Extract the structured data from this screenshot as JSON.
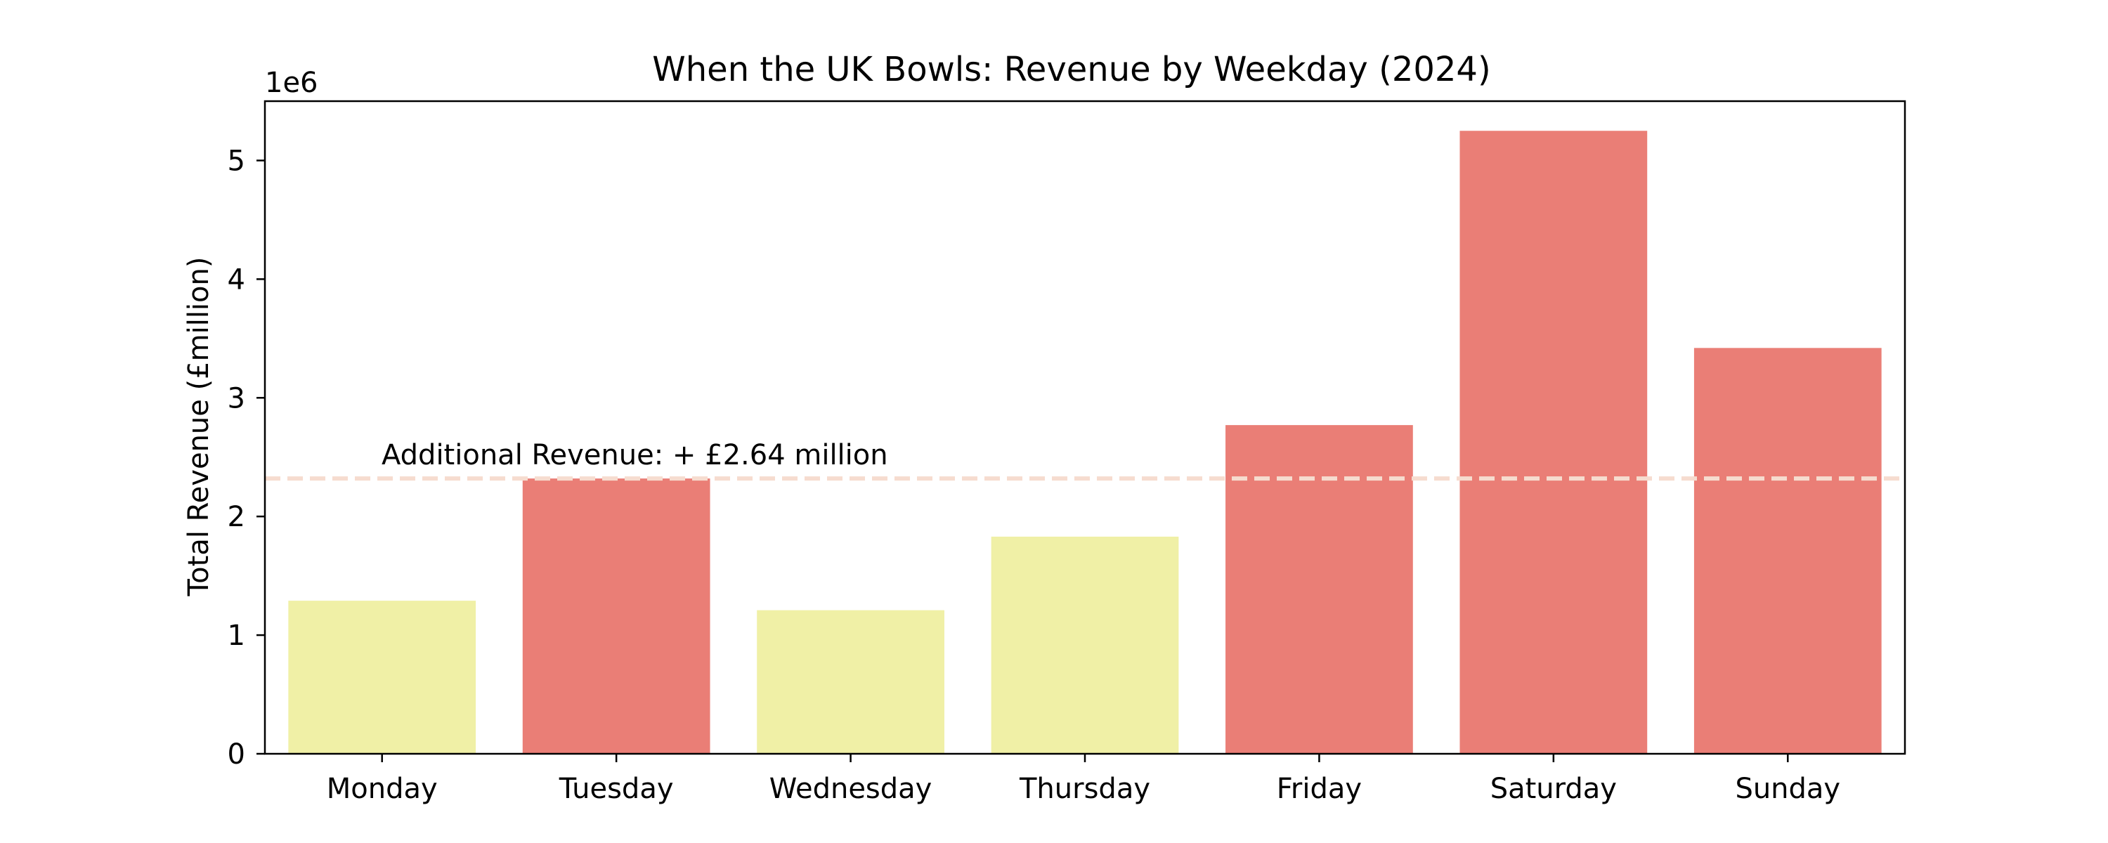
{
  "chart_data": {
    "type": "bar",
    "title": "When the UK Bowls: Revenue by Weekday (2024)",
    "xlabel": "",
    "ylabel": "Total Revenue (£million)",
    "offset_label": "1e6",
    "categories": [
      "Monday",
      "Tuesday",
      "Wednesday",
      "Thursday",
      "Friday",
      "Saturday",
      "Sunday"
    ],
    "values": [
      1290000,
      2320000,
      1210000,
      1830000,
      2770000,
      5250000,
      3420000
    ],
    "bar_colors": [
      "#f0f0a6",
      "#ea7e76",
      "#f0f0a6",
      "#f0f0a6",
      "#ea7e76",
      "#ea7e76",
      "#ea7e76"
    ],
    "ylim": [
      0,
      5500000
    ],
    "yticks": [
      0,
      1000000,
      2000000,
      3000000,
      4000000,
      5000000
    ],
    "ytick_labels": [
      "0",
      "1",
      "2",
      "3",
      "4",
      "5"
    ],
    "grid": false,
    "reference_line": {
      "value": 2320000,
      "style": "dashed",
      "color": "#f6dccf"
    },
    "annotation": {
      "text": "Additional Revenue: + £2.64 million"
    }
  }
}
